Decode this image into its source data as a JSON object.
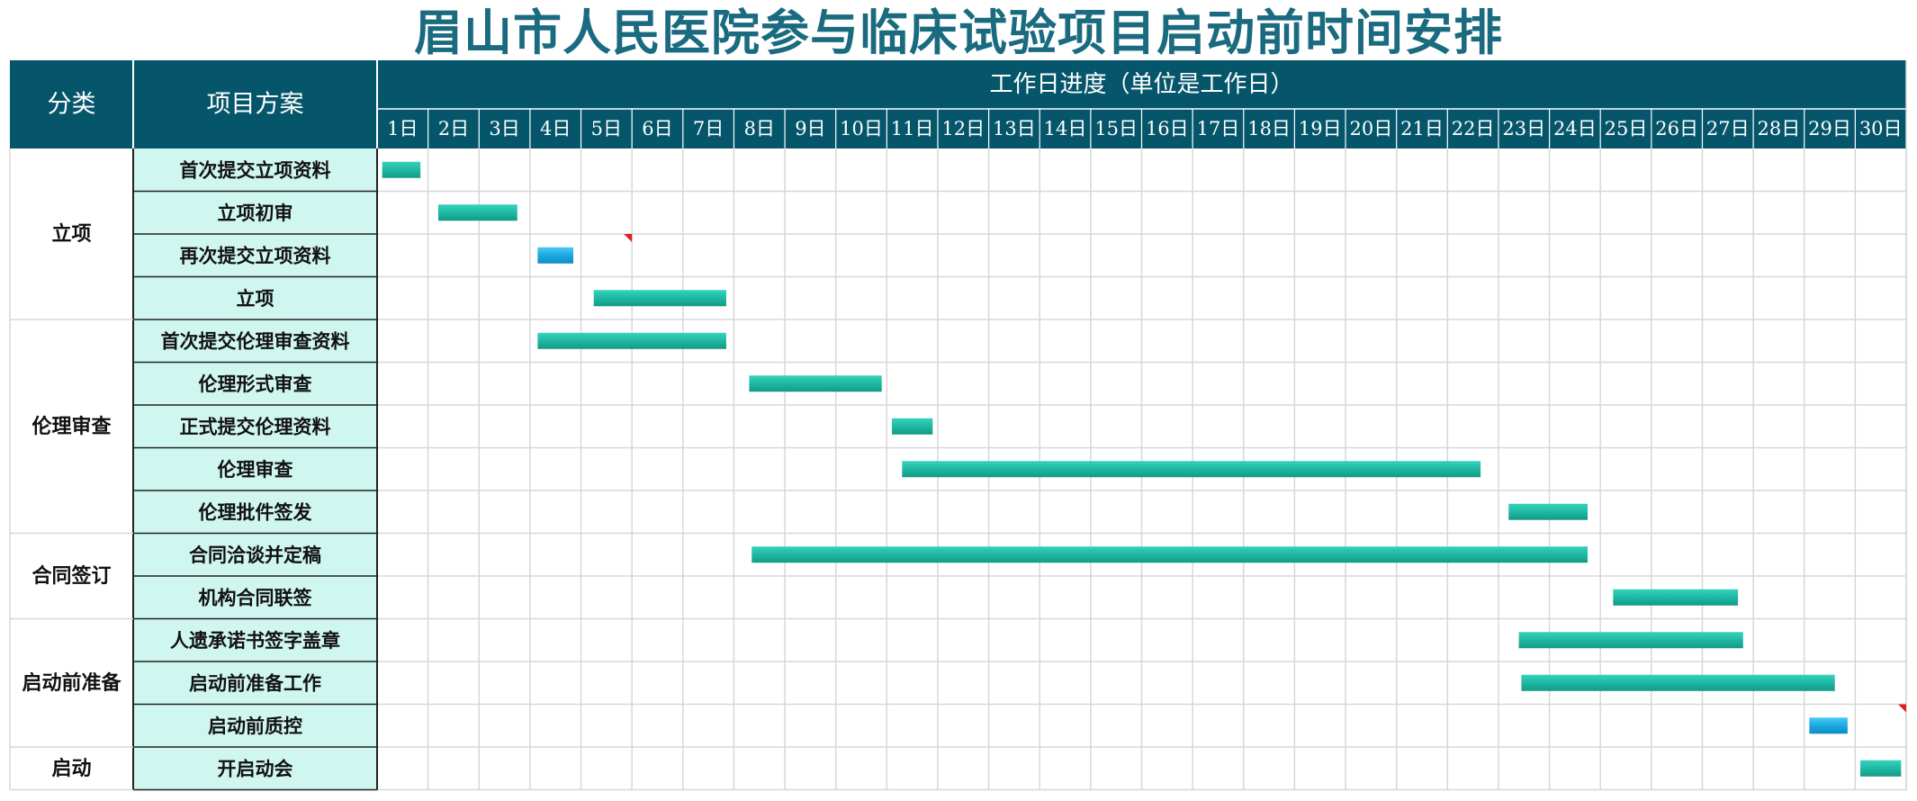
{
  "title": "眉山市人民医院参与临床试验项目启动前时间安排",
  "colors": {
    "header_bg": "#06566b",
    "header_text": "#ffffff",
    "task_cell_bg": "#d0f6f0",
    "bar_main": "#1eb8a3",
    "bar_alt": "#1aa9e0",
    "marker": "#e02020",
    "grid": "#d7d7d7"
  },
  "chart_data": {
    "type": "gantt",
    "title": "眉山市人民医院参与临床试验项目启动前时间安排",
    "header": {
      "category_label": "分类",
      "task_label": "项目方案",
      "timeline_label": "工作日进度（单位是工作日）"
    },
    "x_unit": "工作日",
    "x_range": [
      1,
      30
    ],
    "day_labels": [
      "1日",
      "2日",
      "3日",
      "4日",
      "5日",
      "6日",
      "7日",
      "8日",
      "9日",
      "10日",
      "11日",
      "12日",
      "13日",
      "14日",
      "15日",
      "16日",
      "17日",
      "18日",
      "19日",
      "20日",
      "21日",
      "22日",
      "23日",
      "24日",
      "25日",
      "26日",
      "27日",
      "28日",
      "29日",
      "30日"
    ],
    "categories": [
      {
        "name": "立项",
        "rows": 4
      },
      {
        "name": "伦理审查",
        "rows": 5
      },
      {
        "name": "合同签订",
        "rows": 2
      },
      {
        "name": "启动前准备",
        "rows": 3
      },
      {
        "name": "启动",
        "rows": 1
      }
    ],
    "tasks": [
      {
        "name": "首次提交立项资料",
        "start": 1.1,
        "end": 1.85,
        "style": "main",
        "marker": false
      },
      {
        "name": "立项初审",
        "start": 2.2,
        "end": 3.75,
        "style": "main",
        "marker": false
      },
      {
        "name": "再次提交立项资料",
        "start": 4.15,
        "end": 4.85,
        "style": "alt",
        "marker": true
      },
      {
        "name": "立项",
        "start": 5.25,
        "end": 7.85,
        "style": "main",
        "marker": false
      },
      {
        "name": "首次提交伦理审查资料",
        "start": 4.15,
        "end": 7.85,
        "style": "main",
        "marker": false
      },
      {
        "name": "伦理形式审查",
        "start": 8.3,
        "end": 10.9,
        "style": "main",
        "marker": false
      },
      {
        "name": "正式提交伦理资料",
        "start": 11.1,
        "end": 11.9,
        "style": "main",
        "marker": false
      },
      {
        "name": "伦理审查",
        "start": 11.3,
        "end": 22.65,
        "style": "main",
        "marker": false
      },
      {
        "name": "伦理批件签发",
        "start": 23.2,
        "end": 24.75,
        "style": "main",
        "marker": false
      },
      {
        "name": "合同洽谈并定稿",
        "start": 8.35,
        "end": 24.75,
        "style": "main",
        "marker": false
      },
      {
        "name": "机构合同联签",
        "start": 25.25,
        "end": 27.7,
        "style": "main",
        "marker": false
      },
      {
        "name": "人遗承诺书签字盖章",
        "start": 23.4,
        "end": 27.8,
        "style": "main",
        "marker": false
      },
      {
        "name": "启动前准备工作",
        "start": 23.45,
        "end": 29.6,
        "style": "main",
        "marker": false
      },
      {
        "name": "启动前质控",
        "start": 29.1,
        "end": 29.85,
        "style": "alt",
        "marker": true
      },
      {
        "name": "开启动会",
        "start": 30.1,
        "end": 30.9,
        "style": "main",
        "marker": false
      }
    ]
  }
}
